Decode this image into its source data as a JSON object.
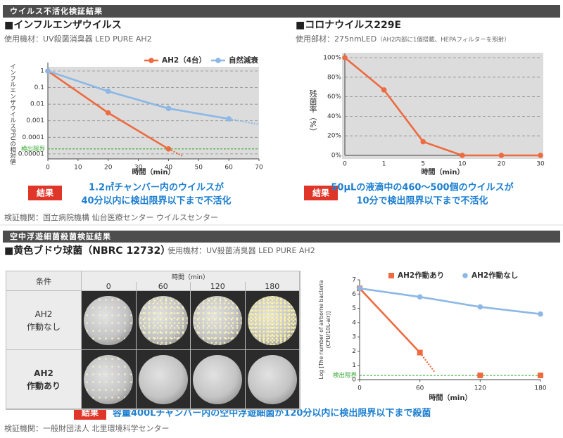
{
  "virus_section": {
    "header": "ウイルス不活化検証結果",
    "influenza": {
      "title": "■インフルエンザウイルス",
      "subtitle": "使用機材：UV殺菌消臭器 LED PURE AH2",
      "result_label": "結果",
      "result_lines": [
        "1.2㎥チャンバー内のウイルスが",
        "40分以内に検出限界以下まで不活化"
      ],
      "source": "検証機関：国立病院機構 仙台医療センター ウイルスセンター"
    },
    "corona": {
      "title": "■コロナウイルス229E",
      "subtitle": "使用部材：275nmLED",
      "subtitle_note": "（AH2内部に1個搭載、HEPAフィルターを照射）",
      "result_label": "結果",
      "result_lines": [
        "50μLの液滴中の460〜500個のウイルスが",
        "10分で検出限界以下まで不活化"
      ]
    }
  },
  "bacteria_section": {
    "header": "空中浮遊細菌殺菌検証結果",
    "title": "■黄色ブドウ球菌（NBRC 12732）",
    "subtitle": "使用機材：UV殺菌消臭器 LED PURE AH2",
    "table": {
      "condition_header": "条件",
      "time_header": "時間（min）",
      "columns": [
        "0",
        "60",
        "120",
        "180"
      ],
      "rows": [
        [
          "AH2",
          "作動なし"
        ],
        [
          "AH2",
          "作動あり"
        ]
      ]
    },
    "result_label": "結果",
    "result": "容量400Lチャンバー内の空中浮遊細菌が120分以内に検出限界以下まで殺菌",
    "source": "検証機関：一般財団法人 北里環境科学センター"
  },
  "chart_data": [
    {
      "type": "line",
      "y_label": "インフルエンザウイルスPFUの相対値",
      "x_label": "時間（min）",
      "log_y": true,
      "grid": true,
      "legend": "top",
      "xlim": [
        0,
        70
      ],
      "xticks": [
        0,
        10,
        20,
        30,
        40,
        50,
        60,
        70
      ],
      "ylim": [
        5e-06,
        1.8
      ],
      "yticks": [
        1,
        0.1,
        0.01,
        0.001,
        0.0001,
        1e-05
      ],
      "detection_limit": {
        "label": "検出限界",
        "value": 2e-05,
        "color": "#3aaa35"
      },
      "series": [
        {
          "name": "AH2（4台）",
          "color": "#ee6a3f",
          "x": [
            0,
            20,
            40
          ],
          "values": [
            1,
            0.003,
            2e-05
          ],
          "projection": {
            "x": [
              40,
              45
            ],
            "values": [
              2e-05,
              7e-06
            ]
          }
        },
        {
          "name": "自然減衰",
          "color": "#8cb8e6",
          "x": [
            0,
            20,
            40,
            60
          ],
          "values": [
            1,
            0.06,
            0.0055,
            0.0013
          ],
          "projection": {
            "x": [
              60,
              70
            ],
            "values": [
              0.0013,
              0.0006
            ]
          }
        }
      ]
    },
    {
      "type": "line",
      "y_label": "残菌率（%）",
      "x_label": "時間（min）",
      "grid": true,
      "categories": [
        "0",
        "1",
        "5",
        "10",
        "20",
        "30"
      ],
      "values": [
        100,
        67,
        14,
        0,
        0,
        0
      ],
      "color": "#ee6a3f",
      "ylim": [
        0,
        100
      ],
      "yticks": [
        {
          "value": 0,
          "label": "0%"
        },
        {
          "value": 20,
          "label": "20%"
        },
        {
          "value": 40,
          "label": "40%"
        },
        {
          "value": 60,
          "label": "60%"
        },
        {
          "value": 80,
          "label": "80%"
        },
        {
          "value": 100,
          "label": "100%"
        }
      ]
    },
    {
      "type": "line",
      "y_label": [
        "Log [The number of airborne bacteria",
        "(CFU/10L-air)]"
      ],
      "x_label": "時間（min）",
      "grid": false,
      "legend": "top",
      "xlim": [
        0,
        180
      ],
      "xticks": [
        0,
        60,
        120,
        180
      ],
      "ylim": [
        0,
        7
      ],
      "yticks": [
        0,
        1,
        2,
        3,
        4,
        5,
        6,
        7
      ],
      "detection_limit": {
        "label": "検出限界",
        "value": 0.3,
        "color": "#3aaa35"
      },
      "series": [
        {
          "name": "AH2作動あり",
          "color": "#ee6a3f",
          "marker": "square",
          "x": [
            0,
            60
          ],
          "values": [
            6.4,
            1.9
          ],
          "projection": {
            "x": [
              60,
              75
            ],
            "values": [
              1.9,
              0.5
            ]
          },
          "limit_markers": {
            "x": [
              120,
              180
            ],
            "values": [
              0.3,
              0.3
            ]
          }
        },
        {
          "name": "AH2作動なし",
          "color": "#8cb8e6",
          "marker": "circle",
          "x": [
            0,
            60,
            120,
            180
          ],
          "values": [
            6.4,
            5.8,
            5.1,
            4.6
          ]
        }
      ]
    }
  ]
}
